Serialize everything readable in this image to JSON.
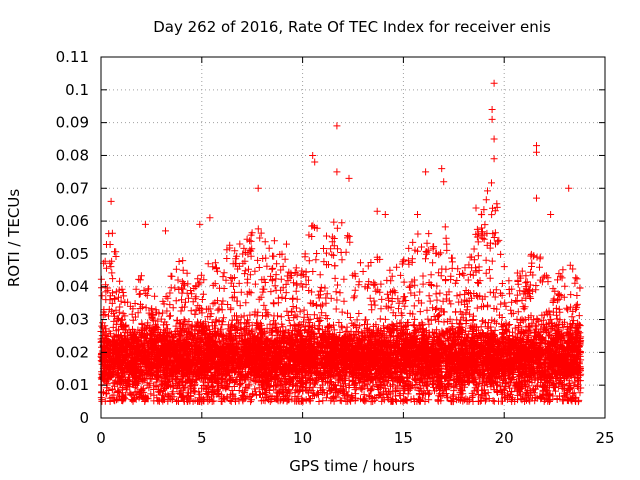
{
  "chart_data": {
    "type": "scatter",
    "title": "Day 262 of 2016, Rate Of TEC Index for receiver enis",
    "xlabel": "GPS time / hours",
    "ylabel": "ROTI / TECUs",
    "xlim": [
      0,
      25
    ],
    "ylim": [
      0,
      0.11
    ],
    "x_ticks": [
      0,
      5,
      10,
      15,
      20,
      25
    ],
    "x_tick_labels": [
      "0",
      "5",
      "10",
      "15",
      "20",
      "25"
    ],
    "y_ticks": [
      0,
      0.01,
      0.02,
      0.03,
      0.04,
      0.05,
      0.06,
      0.07,
      0.08,
      0.09,
      0.1,
      0.11
    ],
    "y_tick_labels": [
      "0",
      "0.01",
      "0.02",
      "0.03",
      "0.04",
      "0.05",
      "0.06",
      "0.07",
      "0.08",
      "0.09",
      "0.1",
      "0.11"
    ],
    "grid": true,
    "marker": "+",
    "color": "#ff0000",
    "series": [
      {
        "name": "ROTI",
        "x_range": [
          0,
          23.8
        ],
        "typical_range": [
          0.005,
          0.03
        ],
        "envelope": [
          [
            0.0,
            0.048
          ],
          [
            0.5,
            0.06
          ],
          [
            1.0,
            0.04
          ],
          [
            1.5,
            0.035
          ],
          [
            2.0,
            0.045
          ],
          [
            2.5,
            0.04
          ],
          [
            3.0,
            0.035
          ],
          [
            3.5,
            0.045
          ],
          [
            4.0,
            0.05
          ],
          [
            4.5,
            0.04
          ],
          [
            5.0,
            0.045
          ],
          [
            5.5,
            0.05
          ],
          [
            6.0,
            0.045
          ],
          [
            6.5,
            0.06
          ],
          [
            7.0,
            0.055
          ],
          [
            7.5,
            0.065
          ],
          [
            8.0,
            0.06
          ],
          [
            8.5,
            0.05
          ],
          [
            9.0,
            0.05
          ],
          [
            9.5,
            0.05
          ],
          [
            10.0,
            0.045
          ],
          [
            10.5,
            0.065
          ],
          [
            11.0,
            0.055
          ],
          [
            11.5,
            0.06
          ],
          [
            12.0,
            0.06
          ],
          [
            12.5,
            0.055
          ],
          [
            13.0,
            0.045
          ],
          [
            13.5,
            0.05
          ],
          [
            14.0,
            0.05
          ],
          [
            14.5,
            0.045
          ],
          [
            15.0,
            0.05
          ],
          [
            15.5,
            0.055
          ],
          [
            16.0,
            0.06
          ],
          [
            16.5,
            0.055
          ],
          [
            17.0,
            0.06
          ],
          [
            17.5,
            0.05
          ],
          [
            18.0,
            0.045
          ],
          [
            18.5,
            0.055
          ],
          [
            19.0,
            0.065
          ],
          [
            19.5,
            0.08
          ],
          [
            20.0,
            0.05
          ],
          [
            20.5,
            0.045
          ],
          [
            21.0,
            0.045
          ],
          [
            21.5,
            0.055
          ],
          [
            22.0,
            0.045
          ],
          [
            22.5,
            0.04
          ],
          [
            23.0,
            0.05
          ],
          [
            23.5,
            0.045
          ],
          [
            23.8,
            0.04
          ]
        ],
        "outliers": [
          [
            19.5,
            0.102
          ],
          [
            19.4,
            0.094
          ],
          [
            19.4,
            0.091
          ],
          [
            19.5,
            0.085
          ],
          [
            19.5,
            0.079
          ],
          [
            11.7,
            0.089
          ],
          [
            21.6,
            0.083
          ],
          [
            21.6,
            0.081
          ],
          [
            10.5,
            0.08
          ],
          [
            10.6,
            0.078
          ],
          [
            16.9,
            0.076
          ],
          [
            16.1,
            0.075
          ],
          [
            11.7,
            0.075
          ],
          [
            12.3,
            0.073
          ],
          [
            17.0,
            0.072
          ],
          [
            7.8,
            0.07
          ],
          [
            23.2,
            0.07
          ],
          [
            0.5,
            0.066
          ],
          [
            21.6,
            0.067
          ],
          [
            2.2,
            0.059
          ],
          [
            5.4,
            0.061
          ],
          [
            3.2,
            0.057
          ],
          [
            4.9,
            0.059
          ],
          [
            13.7,
            0.063
          ],
          [
            14.1,
            0.062
          ],
          [
            15.7,
            0.062
          ],
          [
            18.6,
            0.064
          ],
          [
            8.6,
            0.054
          ],
          [
            9.2,
            0.053
          ],
          [
            22.3,
            0.062
          ]
        ]
      }
    ]
  }
}
